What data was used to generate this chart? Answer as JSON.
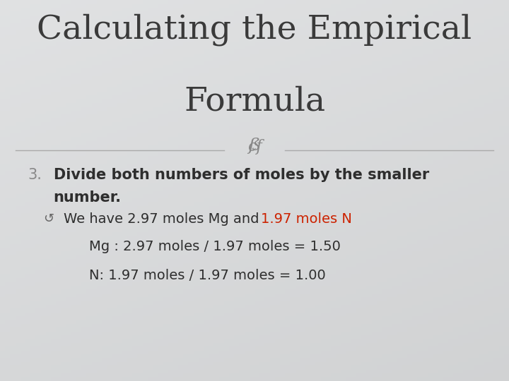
{
  "title_line1": "Calculating the Empirical",
  "title_line2": "Formula",
  "title_color": "#3a3a3a",
  "title_fontsize": 34,
  "divider_color": "#aaaaaa",
  "number_label": "3.",
  "bold_line1": "Divide both numbers of moles by the smaller",
  "bold_line2": "number.",
  "bullet_black": "We have 2.97 moles Mg and ",
  "bullet_red": "1.97 moles N",
  "calc_line1": "Mg : 2.97 moles / 1.97 moles = 1.50",
  "calc_line2": "N: 1.97 moles / 1.97 moles = 1.00",
  "body_color": "#2e2e2e",
  "number_color": "#888888",
  "red_color": "#cc2200",
  "ornament_color": "#888888",
  "body_fontsize": 15,
  "calc_fontsize": 14,
  "bg_left": "#e2e6e9",
  "bg_right": "#d0d4d8"
}
